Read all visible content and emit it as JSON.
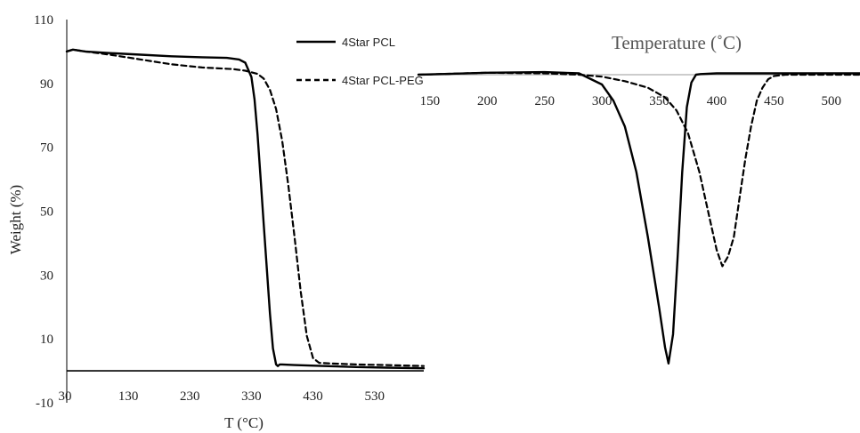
{
  "chart_data": [
    {
      "type": "line",
      "xlabel": "T (°C)",
      "ylabel": "Weight (%)",
      "xlim": [
        30,
        610
      ],
      "ylim": [
        -10,
        110
      ],
      "xticks": [
        30,
        130,
        230,
        330,
        430,
        530
      ],
      "yticks": [
        110,
        90,
        70,
        50,
        30,
        10,
        -10
      ],
      "grid": false,
      "legend_position": "top-right",
      "series": [
        {
          "name": "4Star PCL",
          "style": "solid",
          "color": "#000000",
          "x": [
            30,
            40,
            60,
            100,
            150,
            200,
            250,
            290,
            310,
            320,
            330,
            335,
            340,
            345,
            350,
            355,
            360,
            365,
            370,
            373,
            376,
            380,
            400,
            450,
            500,
            550,
            610
          ],
          "y": [
            100,
            100.6,
            100,
            99.5,
            99,
            98.5,
            98.2,
            98,
            97.5,
            96.5,
            92,
            85,
            74,
            60,
            46,
            32,
            18,
            7,
            2,
            1.5,
            2,
            2,
            1.8,
            1.5,
            1.2,
            1,
            0.8
          ]
        },
        {
          "name": "4Star PCL-PEG",
          "style": "dashed",
          "color": "#000000",
          "x": [
            30,
            40,
            60,
            100,
            150,
            200,
            250,
            300,
            320,
            340,
            350,
            360,
            370,
            380,
            390,
            400,
            410,
            420,
            430,
            440,
            460,
            500,
            550,
            610
          ],
          "y": [
            100,
            100.6,
            100,
            99,
            97.5,
            96,
            95,
            94.5,
            94,
            93,
            91.5,
            88,
            82,
            72,
            58,
            42,
            25,
            11,
            4,
            2.5,
            2.3,
            2,
            1.8,
            1.5
          ]
        }
      ]
    },
    {
      "type": "line",
      "title": "Temperature (˚C)",
      "xlim": [
        140,
        525
      ],
      "xticks": [
        150,
        200,
        250,
        300,
        350,
        400,
        450,
        500
      ],
      "grid": false,
      "series": [
        {
          "name": "4Star PCL",
          "style": "solid",
          "color": "#000000",
          "x": [
            140,
            200,
            250,
            280,
            300,
            310,
            320,
            330,
            340,
            350,
            355,
            358,
            362,
            366,
            370,
            374,
            378,
            382,
            386,
            400,
            450,
            525
          ],
          "y": [
            0,
            0.3,
            0.4,
            0.2,
            -1.5,
            -4,
            -8,
            -15,
            -25,
            -36,
            -42,
            -44.5,
            -40,
            -28,
            -15,
            -5,
            -1.2,
            0,
            0.1,
            0.2,
            0.2,
            0.2
          ]
        },
        {
          "name": "4Star PCL-PEG",
          "style": "dashed",
          "color": "#000000",
          "x": [
            140,
            200,
            250,
            280,
            300,
            320,
            340,
            355,
            365,
            375,
            385,
            395,
            400,
            405,
            410,
            415,
            420,
            425,
            430,
            435,
            440,
            445,
            450,
            460,
            525
          ],
          "y": [
            0,
            0.3,
            0.2,
            0,
            -0.3,
            -1,
            -2,
            -3.5,
            -5.5,
            -9,
            -15,
            -23,
            -27,
            -29.5,
            -28,
            -25,
            -19,
            -13,
            -8,
            -4,
            -2,
            -0.7,
            -0.2,
            0,
            0
          ]
        }
      ]
    }
  ]
}
